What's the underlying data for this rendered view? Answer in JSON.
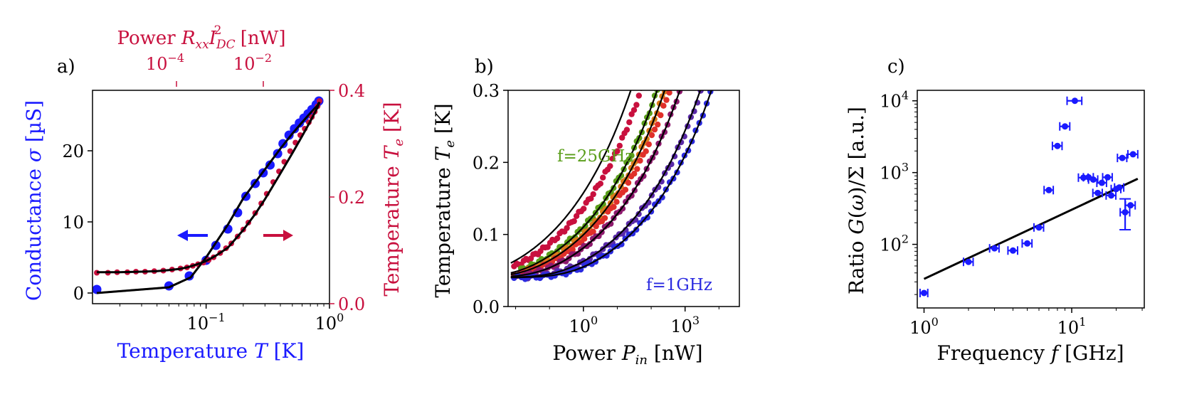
{
  "colors": {
    "blue": "#1a1aff",
    "crimson": "#c8103e",
    "green": "#5a9e1a",
    "black": "#000000"
  },
  "chart_data": [
    {
      "type": "scatter",
      "panel_label": "a)",
      "xlabel_prefix": "Temperature ",
      "xlabel_var": "T",
      "xlabel_unit": " [K]",
      "ylabel_prefix": "Conductance ",
      "ylabel_var": "σ",
      "ylabel_unit": " [µS]",
      "y2label_prefix": "Temperature ",
      "y2label_var": "T",
      "y2label_sub": "e",
      "y2label_unit": " [K]",
      "toplabel_prefix": "Power ",
      "toplabel_var": "R",
      "toplabel_sub1": "xx",
      "toplabel_var2": "I",
      "toplabel_sub2": "DC",
      "toplabel_sup": "2",
      "toplabel_unit": " [nW]",
      "xscale": "log",
      "xlim": [
        0.012,
        1.0
      ],
      "ylim": [
        -1.5,
        28.5
      ],
      "y2lim": [
        0.0,
        0.4
      ],
      "x_ticks": [
        {
          "v": 0.1,
          "base": "10",
          "exp": "−1"
        },
        {
          "v": 1.0,
          "base": "10",
          "exp": "0"
        }
      ],
      "y_ticks": [
        {
          "v": 0,
          "t": "0"
        },
        {
          "v": 10,
          "t": "10"
        },
        {
          "v": 20,
          "t": "20"
        }
      ],
      "y2_ticks": [
        {
          "v": 0.0,
          "t": "0.0"
        },
        {
          "v": 0.2,
          "t": "0.2"
        },
        {
          "v": 0.4,
          "t": "0.4"
        }
      ],
      "top_ticks": [
        {
          "pos": 0.18,
          "base": "10",
          "exp": "−4"
        },
        {
          "pos": 0.5,
          "base": "10",
          "exp": "−2"
        }
      ],
      "arrows": [
        {
          "name": "left-arrow",
          "x": 0.24,
          "y": 0.3,
          "dir": "left",
          "color": "blue"
        },
        {
          "name": "right-arrow",
          "x": 0.22,
          "y": 0.95,
          "dir": "right",
          "color": "crimson"
        }
      ],
      "series": [
        {
          "name": "conductance",
          "axis": "left",
          "color": "blue",
          "style": "markers-large",
          "x": [
            0.013,
            0.05,
            0.073,
            0.1,
            0.12,
            0.15,
            0.18,
            0.21,
            0.25,
            0.29,
            0.33,
            0.38,
            0.42,
            0.47,
            0.52,
            0.57,
            0.62,
            0.67,
            0.72,
            0.78,
            0.82
          ],
          "y": [
            0.5,
            1.0,
            2.4,
            4.6,
            6.7,
            9.0,
            11.3,
            13.6,
            15.4,
            16.9,
            18.0,
            19.6,
            21.0,
            22.2,
            23.1,
            23.9,
            24.6,
            25.2,
            25.8,
            26.5,
            27.0
          ]
        },
        {
          "name": "conductance-fit",
          "axis": "left",
          "color": "black",
          "style": "line",
          "x": [
            0.013,
            0.05,
            0.075,
            0.1,
            0.15,
            0.2,
            0.3,
            0.4,
            0.5,
            0.6,
            0.7,
            0.8,
            0.82
          ],
          "y": [
            0.0,
            0.8,
            2.2,
            5.0,
            9.6,
            13.3,
            17.4,
            20.3,
            22.4,
            24.0,
            25.3,
            26.4,
            26.8
          ]
        },
        {
          "name": "electron-temp",
          "axis": "right",
          "color": "crimson",
          "style": "markers-small",
          "x": [
            0.013,
            0.016,
            0.019,
            0.023,
            0.027,
            0.032,
            0.038,
            0.045,
            0.053,
            0.062,
            0.07,
            0.078,
            0.086,
            0.095,
            0.105,
            0.115,
            0.13,
            0.145,
            0.16,
            0.18,
            0.2,
            0.22,
            0.25,
            0.28,
            0.31,
            0.35,
            0.39,
            0.43,
            0.48,
            0.53,
            0.58,
            0.63,
            0.68,
            0.72,
            0.76,
            0.8,
            0.83
          ],
          "y": [
            0.058,
            0.058,
            0.059,
            0.059,
            0.06,
            0.06,
            0.061,
            0.062,
            0.064,
            0.066,
            0.068,
            0.071,
            0.074,
            0.077,
            0.082,
            0.087,
            0.095,
            0.104,
            0.113,
            0.126,
            0.139,
            0.152,
            0.17,
            0.188,
            0.206,
            0.228,
            0.248,
            0.266,
            0.286,
            0.302,
            0.316,
            0.328,
            0.34,
            0.35,
            0.36,
            0.37,
            0.38
          ]
        },
        {
          "name": "electron-temp-fit",
          "axis": "right",
          "color": "black",
          "style": "line",
          "x": [
            0.013,
            0.02,
            0.03,
            0.04,
            0.05,
            0.06,
            0.07,
            0.08,
            0.09,
            0.1,
            0.12,
            0.15,
            0.2,
            0.25,
            0.3,
            0.4,
            0.5,
            0.6,
            0.7,
            0.8,
            0.83
          ],
          "y": [
            0.059,
            0.059,
            0.06,
            0.061,
            0.063,
            0.065,
            0.068,
            0.072,
            0.076,
            0.08,
            0.09,
            0.105,
            0.138,
            0.168,
            0.196,
            0.244,
            0.282,
            0.314,
            0.342,
            0.368,
            0.378
          ]
        }
      ]
    },
    {
      "type": "scatter",
      "panel_label": "b)",
      "xlabel_prefix": "Power ",
      "xlabel_var": "P",
      "xlabel_sub": "in",
      "xlabel_unit": " [nW]",
      "ylabel_prefix": "Temperature ",
      "ylabel_var": "T",
      "ylabel_sub": "e",
      "ylabel_unit": " [K]",
      "xscale": "log",
      "xlim": [
        0.006,
        40000
      ],
      "ylim": [
        0.0,
        0.3
      ],
      "x_ticks": [
        {
          "v": 1,
          "base": "10",
          "exp": "0"
        },
        {
          "v": 1000,
          "base": "10",
          "exp": "3"
        }
      ],
      "y_ticks": [
        {
          "v": 0.0,
          "t": "0.0"
        },
        {
          "v": 0.1,
          "t": "0.1"
        },
        {
          "v": 0.2,
          "t": "0.2"
        },
        {
          "v": 0.3,
          "t": "0.3"
        }
      ],
      "annotations": [
        {
          "text": "f=25GHz",
          "color": "green",
          "x": 0.9,
          "y": 0.205
        },
        {
          "text": "f=1GHz",
          "color": "blue",
          "x": 400,
          "y": 0.029
        }
      ],
      "curves_P3": [
        {
          "name": "f-25GHz",
          "color": "#c8103e",
          "P3": 50,
          "T0": 0.04,
          "K": 0.08
        },
        {
          "name": "f-20GHz",
          "color": "#5a9e1a",
          "P3": 150,
          "T0": 0.04,
          "K": 0.15
        },
        {
          "name": "f-15GHz",
          "color": "#d97a1a",
          "P3": 250,
          "T0": 0.04,
          "K": 0.3
        },
        {
          "name": "f-10GHz",
          "color": "#e0302a",
          "P3": 350,
          "T0": 0.04,
          "K": 0.6
        },
        {
          "name": "f-5GHz",
          "color": "#8e1a6e",
          "P3": 700,
          "T0": 0.04,
          "K": 1.2
        },
        {
          "name": "f-3GHz",
          "color": "#5a2aa8",
          "P3": 3000,
          "T0": 0.04,
          "K": 2.5
        },
        {
          "name": "f-1GHz",
          "color": "#2a2ae0",
          "P3": 6000,
          "T0": 0.04,
          "K": 4.5
        }
      ],
      "fit_curves_P3": [
        {
          "name": "fit-1",
          "P3": 25,
          "T0": 0.04
        },
        {
          "name": "fit-2",
          "P3": 150,
          "T0": 0.04
        },
        {
          "name": "fit-3",
          "P3": 250,
          "T0": 0.04
        },
        {
          "name": "fit-4",
          "P3": 700,
          "T0": 0.04
        },
        {
          "name": "fit-5",
          "P3": 2800,
          "T0": 0.04
        },
        {
          "name": "fit-6",
          "P3": 6000,
          "T0": 0.04
        }
      ]
    },
    {
      "type": "scatter",
      "panel_label": "c)",
      "xlabel_prefix": "Frequency ",
      "xlabel_var": "f",
      "xlabel_unit": " [GHz]",
      "ylabel_prefix": "Ratio ",
      "ylabel_var": "G",
      "ylabel_mid": "(",
      "ylabel_var2": "ω",
      "ylabel_mid2": ")/Σ",
      "ylabel_unit": " [a.u.]",
      "xscale": "log",
      "yscale": "log",
      "xlim": [
        0.9,
        31
      ],
      "ylim": [
        13,
        14000
      ],
      "x_ticks": [
        {
          "v": 1,
          "base": "10",
          "exp": "0"
        },
        {
          "v": 10,
          "base": "10",
          "exp": "1"
        }
      ],
      "y_ticks": [
        {
          "v": 100,
          "base": "10",
          "exp": "2"
        },
        {
          "v": 1000,
          "base": "10",
          "exp": "3"
        },
        {
          "v": 10000,
          "base": "10",
          "exp": "4"
        }
      ],
      "fit_line": {
        "x": [
          1,
          28
        ],
        "y": [
          33,
          820
        ]
      },
      "points": [
        {
          "f": 1.0,
          "y": 21,
          "xerr": 0.06
        },
        {
          "f": 2.0,
          "y": 57,
          "xerr": 0.15
        },
        {
          "f": 3.0,
          "y": 88,
          "xerr": 0.22
        },
        {
          "f": 4.0,
          "y": 82,
          "xerr": 0.3
        },
        {
          "f": 5.0,
          "y": 103,
          "xerr": 0.38
        },
        {
          "f": 6.0,
          "y": 172,
          "xerr": 0.45
        },
        {
          "f": 7.0,
          "y": 570,
          "xerr": 0.5
        },
        {
          "f": 8.0,
          "y": 2350,
          "xerr": 0.6
        },
        {
          "f": 9.0,
          "y": 4400,
          "xerr": 0.7
        },
        {
          "f": 10.5,
          "y": 10000,
          "xerr": 1.2
        },
        {
          "f": 12.0,
          "y": 850,
          "xerr": 0.9
        },
        {
          "f": 13.0,
          "y": 860,
          "xerr": 1.0
        },
        {
          "f": 14.0,
          "y": 800,
          "xerr": 1.0
        },
        {
          "f": 15.0,
          "y": 520,
          "xerr": 1.1
        },
        {
          "f": 16.0,
          "y": 720,
          "xerr": 1.2
        },
        {
          "f": 17.5,
          "y": 860,
          "xerr": 1.3
        },
        {
          "f": 18.5,
          "y": 480,
          "xerr": 1.4
        },
        {
          "f": 20.0,
          "y": 590,
          "xerr": 1.5
        },
        {
          "f": 21.0,
          "y": 620,
          "xerr": 1.5
        },
        {
          "f": 22.0,
          "y": 1600,
          "xerr": 1.6
        },
        {
          "f": 23.0,
          "y": 280,
          "xerr": 1.7,
          "yerr": [
            160,
            430
          ]
        },
        {
          "f": 25.0,
          "y": 350,
          "xerr": 1.9
        },
        {
          "f": 26.0,
          "y": 1800,
          "xerr": 2.0
        }
      ]
    }
  ]
}
